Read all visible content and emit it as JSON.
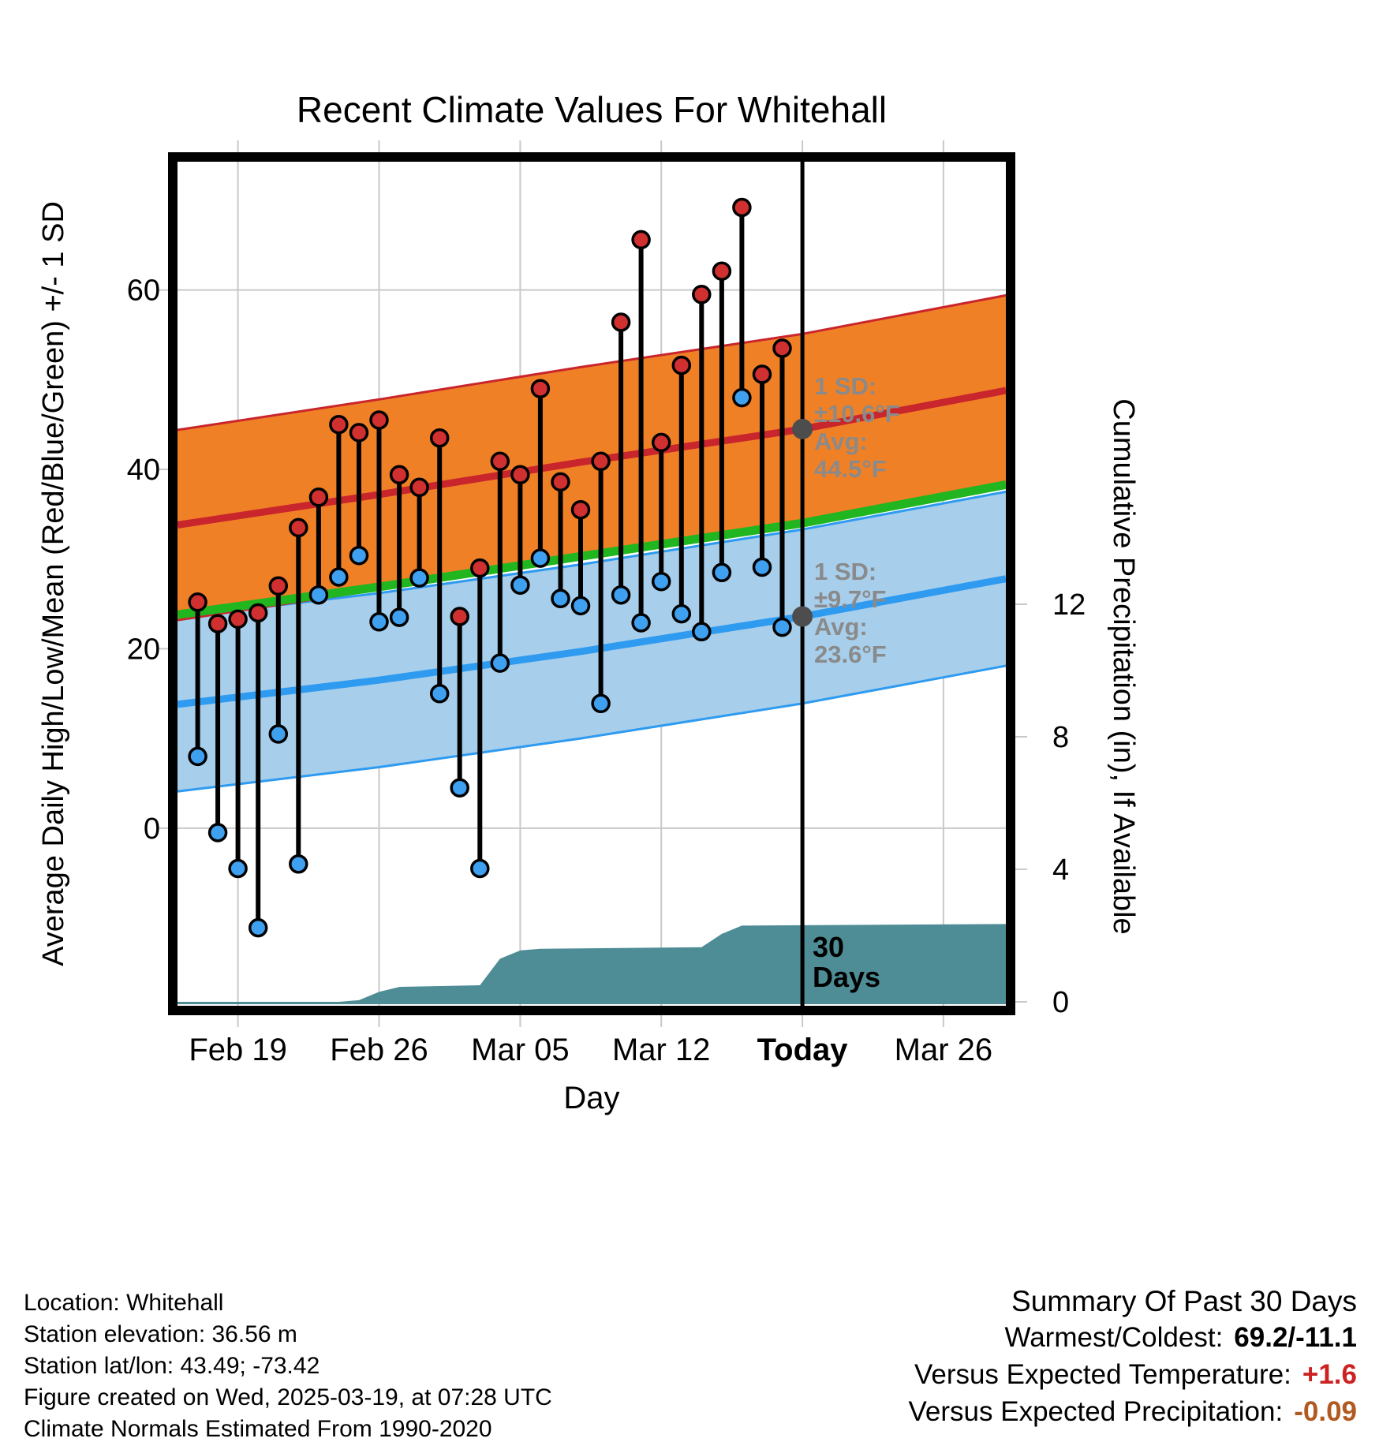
{
  "title": "Recent Climate Values For Whitehall",
  "axes": {
    "x_label": "Day",
    "left_label": "Average Daily High/Low/Mean (Red/Blue/Green) +/- 1 SD",
    "right_label": "Cumulative Precipitation (in), If Available",
    "x_ticks": [
      {
        "label": "Feb 19",
        "day": 3
      },
      {
        "label": "Feb 26",
        "day": 10
      },
      {
        "label": "Mar 05",
        "day": 17
      },
      {
        "label": "Mar 12",
        "day": 24
      },
      {
        "label": "Today",
        "day": 31,
        "bold": true
      },
      {
        "label": "Mar 26",
        "day": 38
      }
    ],
    "left_ticks": [
      {
        "label": "0",
        "value": 0
      },
      {
        "label": "20",
        "value": 20
      },
      {
        "label": "40",
        "value": 40
      },
      {
        "label": "60",
        "value": 60
      }
    ],
    "right_ticks": [
      {
        "label": "0",
        "value": 0
      },
      {
        "label": "4",
        "value": 4
      },
      {
        "label": "8",
        "value": 8
      },
      {
        "label": "12",
        "value": 12
      }
    ]
  },
  "annotations": {
    "high": {
      "sd_label": "1 SD:",
      "sd_value": "±10.6°F",
      "avg_label": "Avg:",
      "avg_value": "44.5°F"
    },
    "low": {
      "sd_label": "1 SD:",
      "sd_value": "±9.7°F",
      "avg_label": "Avg:",
      "avg_value": "23.6°F"
    },
    "period_line1": "30",
    "period_line2": "Days"
  },
  "footer": {
    "lines": [
      "Location: Whitehall",
      "Station elevation: 36.56 m",
      "Station lat/lon: 43.49; -73.42",
      "Figure created on Wed, 2025-03-19, at 07:28 UTC",
      "Climate Normals Estimated From 1990-2020"
    ]
  },
  "summary": {
    "title": "Summary Of Past 30 Days",
    "rows": [
      {
        "label": "Warmest/Coldest:",
        "value": "69.2/-11.1",
        "color": "#000000"
      },
      {
        "label": "Versus Expected Temperature:",
        "value": "+1.6",
        "color": "#CC2222"
      },
      {
        "label": "Versus Expected Precipitation:",
        "value": "-0.09",
        "color": "#B05A20"
      }
    ]
  },
  "colors": {
    "high_band": "#F08026",
    "high_edge": "#C9252C",
    "high_mean_line": "#C9252C",
    "low_band": "#A7CEEB",
    "low_edge": "#2E9BF0",
    "low_mean_line": "#2E9BF0",
    "mean_line": "#21B520",
    "precip_fill": "#4E8D96",
    "high_dot": "#D03030",
    "low_dot": "#3FA0F0",
    "stem": "#000000",
    "today_line": "#000000",
    "annotation_text": "#8A8A8A",
    "avg_dot": "#4D4D4D",
    "grid": "#C9C9C9"
  },
  "chart_data": {
    "type": "line",
    "title": "Recent Climate Values For Whitehall",
    "description": "Daily observed high/low temperatures (red/blue dots joined by black stems) plotted over climate normal bands (high normal in orange ±1 SD, low normal in blue ±1 SD, mean in green); cumulative precipitation shown as teal area on the secondary right axis; vertical black line marks Today (end of 30-day window).",
    "x_axis": {
      "label": "Day",
      "day0_date": "Feb 16",
      "today_day_index": 31,
      "day_span": [
        0,
        41.1
      ]
    },
    "temp_axis": {
      "ticks": [
        0,
        20,
        40,
        60
      ],
      "range": [
        -19.8,
        74.3
      ],
      "unit": "°F"
    },
    "precip_axis": {
      "ticks": [
        0,
        4,
        8,
        12
      ],
      "unit": "in"
    },
    "daily": {
      "dates": [
        "Feb 17",
        "Feb 18",
        "Feb 19",
        "Feb 20",
        "Feb 21",
        "Feb 22",
        "Feb 23",
        "Feb 24",
        "Feb 25",
        "Feb 26",
        "Feb 27",
        "Feb 28",
        "Mar 01",
        "Mar 02",
        "Mar 03",
        "Mar 04",
        "Mar 05",
        "Mar 06",
        "Mar 07",
        "Mar 08",
        "Mar 09",
        "Mar 10",
        "Mar 11",
        "Mar 12",
        "Mar 13",
        "Mar 14",
        "Mar 15",
        "Mar 16",
        "Mar 17",
        "Mar 18"
      ],
      "day_index": [
        1,
        2,
        3,
        4,
        5,
        6,
        7,
        8,
        9,
        10,
        11,
        12,
        13,
        14,
        15,
        16,
        17,
        18,
        19,
        20,
        21,
        22,
        23,
        24,
        25,
        26,
        27,
        28,
        29,
        30
      ],
      "high": [
        25.2,
        22.8,
        23.3,
        24.0,
        27.0,
        33.5,
        36.9,
        45.0,
        44.1,
        45.5,
        39.4,
        38.0,
        43.5,
        23.6,
        29.0,
        40.9,
        39.4,
        49.0,
        38.6,
        35.5,
        40.9,
        56.4,
        65.6,
        43.0,
        51.6,
        59.5,
        62.1,
        69.2,
        50.6,
        53.5
      ],
      "low": [
        8.0,
        -0.5,
        -4.5,
        -11.1,
        10.5,
        -4.0,
        26.0,
        28.0,
        30.4,
        23.0,
        23.5,
        27.9,
        15.0,
        4.5,
        -4.5,
        18.4,
        27.1,
        30.1,
        25.6,
        24.8,
        13.9,
        26.0,
        22.9,
        27.5,
        23.9,
        21.9,
        28.5,
        48.0,
        29.1,
        22.4
      ]
    },
    "normals": {
      "day_index": [
        0,
        10,
        20,
        31,
        41.1
      ],
      "high_mean": [
        33.8,
        37.2,
        40.8,
        44.5,
        48.8
      ],
      "low_mean": [
        13.8,
        16.5,
        19.7,
        23.6,
        27.8
      ],
      "mean": [
        23.8,
        26.9,
        30.3,
        34.0,
        38.3
      ],
      "high_sd": 10.6,
      "low_sd": 9.7
    },
    "today": {
      "day_index": 31,
      "avg_high": 44.5,
      "avg_low": 23.6,
      "high_sd": 10.6,
      "low_sd": 9.7
    },
    "precip_cumulative": {
      "day_index": [
        0,
        8,
        9,
        10,
        11,
        15,
        16,
        17,
        18,
        26,
        27,
        28,
        41.1
      ],
      "inches": [
        0,
        0,
        0.05,
        0.3,
        0.45,
        0.5,
        1.3,
        1.55,
        1.6,
        1.65,
        2.05,
        2.3,
        2.35
      ]
    },
    "summary_past_30_days": {
      "warmest": 69.2,
      "coldest": -11.1,
      "versus_expected_temperature": 1.6,
      "versus_expected_precipitation": -0.09
    }
  }
}
